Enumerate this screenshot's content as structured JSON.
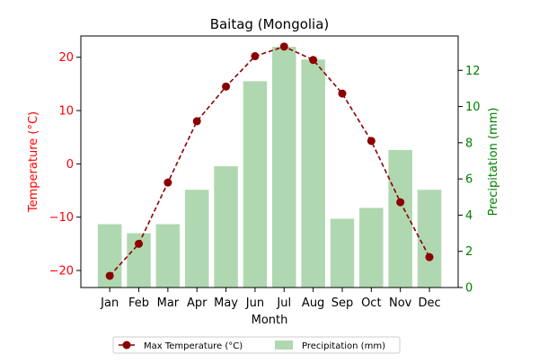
{
  "chart_data": {
    "type": "bar+line",
    "title": "Baitag (Mongolia)",
    "xlabel": "Month",
    "ylabel_left": "Temperature (°C)",
    "ylabel_right": "Precipitation (mm)",
    "categories": [
      "Jan",
      "Feb",
      "Mar",
      "Apr",
      "May",
      "Jun",
      "Jul",
      "Aug",
      "Sep",
      "Oct",
      "Nov",
      "Dec"
    ],
    "ylim_left": [
      -23.2,
      24.0
    ],
    "ylim_right": [
      0,
      13.9
    ],
    "yticks_left": [
      -20,
      -10,
      0,
      10,
      20
    ],
    "yticks_right": [
      0,
      2,
      4,
      6,
      8,
      10,
      12
    ],
    "series": [
      {
        "name": "Max Temperature (°C)",
        "type": "line",
        "axis": "left",
        "color": "#8b0000",
        "style": "dashed",
        "marker": "circle",
        "values": [
          -21.0,
          -15.0,
          -3.5,
          8.0,
          14.5,
          20.2,
          22.0,
          19.5,
          13.2,
          4.3,
          -7.2,
          -17.5
        ]
      },
      {
        "name": "Precipitation (mm)",
        "type": "bar",
        "axis": "right",
        "color": "#b0d8b0",
        "values": [
          3.5,
          3.0,
          3.5,
          5.4,
          6.7,
          11.4,
          13.3,
          12.6,
          3.8,
          4.4,
          7.6,
          5.4
        ]
      }
    ],
    "legend": {
      "placement": "bottom-center"
    },
    "colors": {
      "left_axis": "#ff0000",
      "right_axis": "#008000"
    },
    "grid": false
  }
}
